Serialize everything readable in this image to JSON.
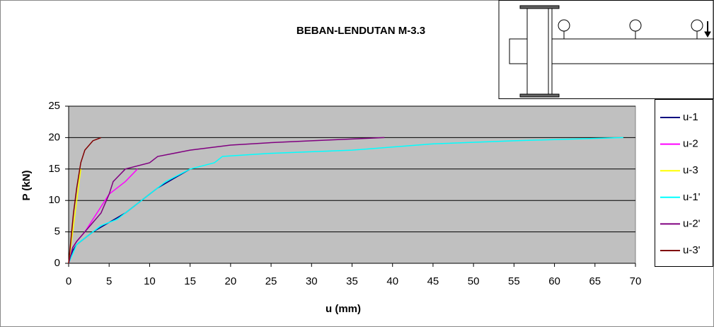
{
  "chart_data": {
    "type": "line",
    "title": "BEBAN-LENDUTAN M-3.3",
    "x_label": "u (mm)",
    "y_label": "P (kN)",
    "xlim": [
      0,
      70
    ],
    "xticks": [
      0,
      5,
      10,
      15,
      20,
      25,
      30,
      35,
      40,
      45,
      50,
      55,
      60,
      65,
      70
    ],
    "ylim": [
      0,
      25
    ],
    "yticks": [
      0,
      5,
      10,
      15,
      20,
      25
    ],
    "grid": true,
    "legend": "right",
    "series": [
      {
        "name": "u-1",
        "color": "#000080",
        "x": [
          0,
          0.5,
          1,
          2,
          3,
          5,
          7,
          9,
          11,
          13,
          15
        ],
        "values": [
          0,
          2,
          3,
          4,
          5,
          6.5,
          8,
          10,
          12,
          13.5,
          15
        ]
      },
      {
        "name": "u-2",
        "color": "#ff00ff",
        "x": [
          0,
          0.5,
          1,
          2,
          3,
          4,
          5,
          6,
          7,
          8.5
        ],
        "values": [
          0,
          2.5,
          3.5,
          5,
          7,
          9,
          11,
          12,
          13,
          15
        ]
      },
      {
        "name": "u-3",
        "color": "#ffff00",
        "x": [
          0,
          0.3,
          0.6,
          0.9,
          1.2,
          1.5
        ],
        "values": [
          0,
          3,
          6,
          9,
          12,
          15
        ]
      },
      {
        "name": "u-1'",
        "color": "#00ffff",
        "x": [
          0,
          0.5,
          1,
          2,
          4,
          6,
          8,
          10,
          12,
          15,
          18,
          19,
          25,
          35,
          45,
          55,
          68.5
        ],
        "values": [
          0,
          1.5,
          3,
          4,
          6,
          7,
          9,
          11,
          13,
          15,
          16,
          17,
          17.5,
          18,
          19,
          19.5,
          20
        ]
      },
      {
        "name": "u-2'",
        "color": "#800080",
        "x": [
          0,
          0.5,
          1,
          2,
          4,
          5,
          5.5,
          7,
          10,
          11,
          15,
          20,
          25,
          30,
          39
        ],
        "values": [
          0,
          2.5,
          3.5,
          5,
          8,
          11,
          13,
          15,
          16,
          17,
          18,
          18.8,
          19.2,
          19.5,
          20
        ]
      },
      {
        "name": "u-3'",
        "color": "#800000",
        "x": [
          0,
          0.3,
          0.6,
          1,
          1.5,
          2,
          3,
          4
        ],
        "values": [
          0,
          4,
          8,
          12,
          16,
          18,
          19.5,
          20
        ]
      }
    ]
  }
}
